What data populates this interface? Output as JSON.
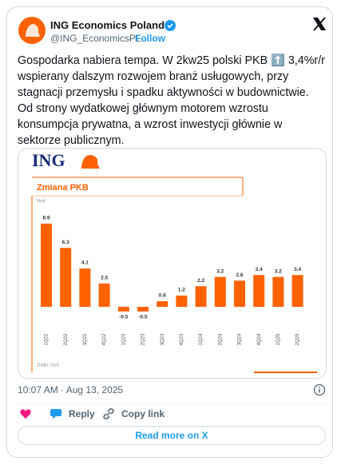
{
  "author": {
    "name": "ING Economics Poland",
    "handle": "@ING_EconomicsPL",
    "separator": "·",
    "follow": "Follow"
  },
  "text": "Gospodarka nabiera tempa. W 2kw25 polski PKB ⬆️ 3,4%r/r wspierany dalszym rozwojem branż usługowych, przy stagnacji przemysłu i spadku aktywności w budownictwie. Od strony wydatkowej głównym motorem wzrostu konsumpcja prywatna, a wzrost inwestycji głównie w sektorze publicznym.",
  "chart_data": {
    "type": "bar",
    "logo": "ING",
    "title": "Zmiana PKB",
    "subtitle": "%r/r",
    "source": "Źródło: GUS",
    "categories": [
      "1Q22",
      "2Q22",
      "3Q22",
      "4Q22",
      "1Q23",
      "2Q23",
      "3Q23",
      "4Q23",
      "1Q24",
      "2Q24",
      "3Q24",
      "4Q24",
      "1Q25",
      "2Q25"
    ],
    "values": [
      8.9,
      6.3,
      4.1,
      2.5,
      -0.5,
      -0.5,
      0.6,
      1.2,
      2.2,
      3.2,
      2.8,
      3.4,
      3.2,
      3.4
    ],
    "color": "#ff6200"
  },
  "timestamp": "10:07 AM · Aug 13, 2025",
  "actions": {
    "reply": "Reply",
    "copy_link": "Copy link",
    "read_more": "Read more on X"
  }
}
